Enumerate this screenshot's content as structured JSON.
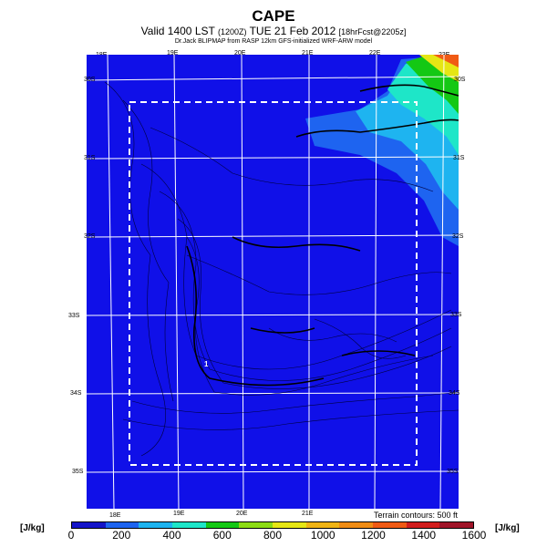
{
  "header": {
    "title": "CAPE",
    "subtitle_main": "Valid 1400 LST",
    "subtitle_utc": "(1200Z)",
    "subtitle_date": "TUE 21 Feb 2012",
    "subtitle_fcst": "[18hrFcst@2205z]",
    "credit": "Dr.Jack BLIPMAP from RASP 12km GFS-initialized WRF-ARW model"
  },
  "map": {
    "lon_labels_top": [
      "18E",
      "19E",
      "20E",
      "21E",
      "22E",
      "23E"
    ],
    "lon_labels_bottom": [
      "18E",
      "19E",
      "20E",
      "21E"
    ],
    "lat_labels_left": [
      "30S",
      "31S",
      "32S",
      "33S",
      "34S",
      "35S"
    ],
    "lat_labels_right": [
      "30S",
      "31S",
      "32S",
      "33S",
      "34S",
      "35S"
    ],
    "terrain_note": "Terrain contours: 500 ft",
    "marker": "1"
  },
  "colorbar": {
    "unit_left": "[J/kg]",
    "unit_right": "[J/kg]",
    "ticks": [
      "0",
      "200",
      "400",
      "600",
      "800",
      "1000",
      "1200",
      "1400",
      "1600"
    ],
    "colors": [
      "#1414c8",
      "#1e64f0",
      "#1eb4f0",
      "#1ee6c8",
      "#14c814",
      "#8cdc14",
      "#e6e614",
      "#f0b414",
      "#f08c14",
      "#f05a14",
      "#d21e1e",
      "#a01428"
    ]
  }
}
